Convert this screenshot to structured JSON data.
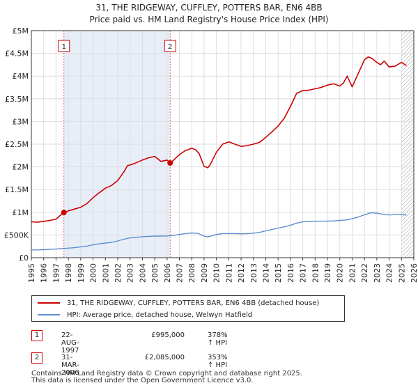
{
  "title_line1": "31, THE RIDGEWAY, CUFFLEY, POTTERS BAR, EN6 4BB",
  "title_line2": "Price paid vs. HM Land Registry's House Price Index (HPI)",
  "colors": {
    "property": "#cc0000",
    "hpi": "#5b8fd0",
    "grid": "#dddddd",
    "vline": "#e06060",
    "shade": "#e8eef8"
  },
  "chart_data": {
    "type": "line",
    "ylim": [
      0,
      5000000
    ],
    "xlim": [
      1995,
      2026
    ],
    "ytick_values": [
      0,
      500000,
      1000000,
      1500000,
      2000000,
      2500000,
      3000000,
      3500000,
      4000000,
      4500000,
      5000000
    ],
    "ytick_labels": [
      "£0",
      "£500K",
      "£1M",
      "£1.5M",
      "£2M",
      "£2.5M",
      "£3M",
      "£3.5M",
      "£4M",
      "£4.5M",
      "£5M"
    ],
    "xtick_labels": [
      "1995",
      "1996",
      "1997",
      "1998",
      "1999",
      "2000",
      "2001",
      "2002",
      "2003",
      "2004",
      "2005",
      "2006",
      "2007",
      "2008",
      "2009",
      "2010",
      "2011",
      "2012",
      "2013",
      "2014",
      "2015",
      "2016",
      "2017",
      "2018",
      "2019",
      "2020",
      "2021",
      "2022",
      "2023",
      "2024",
      "2025",
      "2026"
    ],
    "series": [
      {
        "name": "31, THE RIDGEWAY, CUFFLEY, POTTERS BAR, EN6 4BB (detached house)",
        "x": [
          1995.0,
          1995.5,
          1996.0,
          1996.5,
          1997.0,
          1997.3,
          1997.64,
          1998.0,
          1998.5,
          1999.0,
          1999.5,
          2000.0,
          2000.5,
          2001.0,
          2001.5,
          2002.0,
          2002.5,
          2002.8,
          2003.0,
          2003.5,
          2004.0,
          2004.5,
          2005.0,
          2005.5,
          2006.0,
          2006.25,
          2006.5,
          2007.0,
          2007.5,
          2008.0,
          2008.3,
          2008.6,
          2009.0,
          2009.3,
          2009.5,
          2010.0,
          2010.5,
          2011.0,
          2011.5,
          2012.0,
          2012.5,
          2013.0,
          2013.5,
          2014.0,
          2014.5,
          2015.0,
          2015.5,
          2016.0,
          2016.5,
          2017.0,
          2017.5,
          2018.0,
          2018.5,
          2019.0,
          2019.5,
          2020.0,
          2020.3,
          2020.6,
          2021.0,
          2021.5,
          2022.0,
          2022.3,
          2022.6,
          2023.0,
          2023.3,
          2023.6,
          2024.0,
          2024.5,
          2025.0,
          2025.4
        ],
        "y": [
          790000,
          780000,
          800000,
          820000,
          850000,
          920000,
          995000,
          1030000,
          1070000,
          1110000,
          1190000,
          1320000,
          1430000,
          1530000,
          1590000,
          1700000,
          1890000,
          2030000,
          2040000,
          2090000,
          2150000,
          2200000,
          2230000,
          2120000,
          2150000,
          2085000,
          2140000,
          2270000,
          2360000,
          2410000,
          2380000,
          2290000,
          2010000,
          1980000,
          2050000,
          2320000,
          2500000,
          2550000,
          2500000,
          2450000,
          2470000,
          2500000,
          2540000,
          2650000,
          2770000,
          2900000,
          3070000,
          3330000,
          3620000,
          3680000,
          3690000,
          3720000,
          3750000,
          3800000,
          3830000,
          3780000,
          3850000,
          4000000,
          3760000,
          4060000,
          4360000,
          4420000,
          4390000,
          4300000,
          4250000,
          4330000,
          4200000,
          4220000,
          4300000,
          4230000
        ]
      },
      {
        "name": "HPI: Average price, detached house, Welwyn Hatfield",
        "x": [
          1995.0,
          1995.5,
          1996.0,
          1996.5,
          1997.0,
          1997.5,
          1998.0,
          1998.5,
          1999.0,
          1999.5,
          2000.0,
          2000.5,
          2001.0,
          2001.5,
          2002.0,
          2002.5,
          2003.0,
          2003.5,
          2004.0,
          2004.5,
          2005.0,
          2005.5,
          2006.0,
          2006.5,
          2007.0,
          2007.5,
          2008.0,
          2008.5,
          2009.0,
          2009.3,
          2009.6,
          2010.0,
          2010.5,
          2011.0,
          2011.5,
          2012.0,
          2012.5,
          2013.0,
          2013.5,
          2014.0,
          2014.5,
          2015.0,
          2015.5,
          2016.0,
          2016.5,
          2017.0,
          2017.5,
          2018.0,
          2018.5,
          2019.0,
          2019.5,
          2020.0,
          2020.5,
          2021.0,
          2021.5,
          2022.0,
          2022.5,
          2023.0,
          2023.5,
          2024.0,
          2024.5,
          2025.0,
          2025.4
        ],
        "y": [
          170000,
          172000,
          176000,
          182000,
          190000,
          200000,
          210000,
          221000,
          236000,
          255000,
          283000,
          305000,
          322000,
          337000,
          368000,
          407000,
          436000,
          450000,
          462000,
          470000,
          476000,
          476000,
          478000,
          490000,
          510000,
          530000,
          545000,
          535000,
          475000,
          458000,
          478000,
          510000,
          530000,
          532000,
          530000,
          525000,
          530000,
          540000,
          557000,
          590000,
          620000,
          652000,
          680000,
          715000,
          760000,
          790000,
          800000,
          802000,
          803000,
          805000,
          810000,
          820000,
          830000,
          858000,
          895000,
          945000,
          988000,
          980000,
          955000,
          940000,
          950000,
          955000,
          935000
        ]
      }
    ],
    "sales": [
      {
        "label": "1",
        "x": 1997.64,
        "y": 995000
      },
      {
        "label": "2",
        "x": 2006.25,
        "y": 2085000
      }
    ]
  },
  "legend": {
    "property_label": "31, THE RIDGEWAY, CUFFLEY, POTTERS BAR, EN6 4BB (detached house)",
    "hpi_label": "HPI: Average price, detached house, Welwyn Hatfield"
  },
  "sales_table": [
    {
      "num": "1",
      "date": "22-AUG-1997",
      "price": "£995,000",
      "hpi": "378% ↑ HPI"
    },
    {
      "num": "2",
      "date": "31-MAR-2006",
      "price": "£2,085,000",
      "hpi": "353% ↑ HPI"
    }
  ],
  "footer_line1": "Contains HM Land Registry data © Crown copyright and database right 2025.",
  "footer_line2": "This data is licensed under the Open Government Licence v3.0."
}
